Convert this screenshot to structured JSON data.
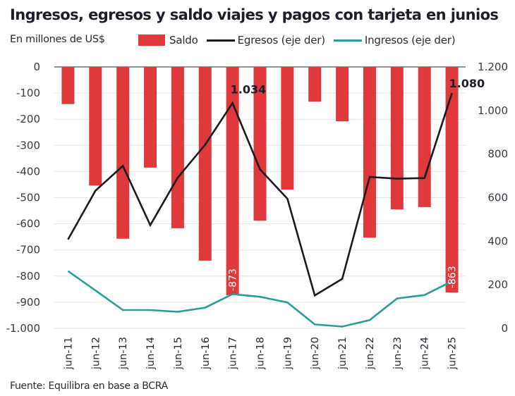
{
  "chart_data": {
    "type": "bar",
    "title": "Ingresos, egresos y saldo viajes y pagos con tarjeta en junios",
    "subtitle": "En millones de US$",
    "source": "Fuente: Equilibra en base a BCRA",
    "categories": [
      "jun-11",
      "jun-12",
      "jun-13",
      "jun-14",
      "jun-15",
      "jun-16",
      "jun-17",
      "jun-18",
      "jun-19",
      "jun-20",
      "jun-21",
      "jun-22",
      "jun-23",
      "jun-24",
      "jun-25"
    ],
    "series": [
      {
        "name": "Saldo",
        "type": "bar",
        "axis": "left",
        "color": "#e03939",
        "values": [
          -142,
          -454,
          -657,
          -385,
          -617,
          -741,
          -873,
          -588,
          -469,
          -133,
          -208,
          -653,
          -545,
          -536,
          -863
        ]
      },
      {
        "name": "Egresos (eje der)",
        "type": "line",
        "axis": "right",
        "color": "#1a1a22",
        "values": [
          408,
          632,
          746,
          474,
          692,
          843,
          1034,
          730,
          595,
          151,
          227,
          695,
          687,
          690,
          1080
        ]
      },
      {
        "name": "Ingresos (eje der)",
        "type": "line",
        "axis": "right",
        "color": "#2a9d95",
        "values": [
          263,
          174,
          84,
          84,
          76,
          95,
          157,
          145,
          119,
          18,
          8,
          38,
          137,
          153,
          216
        ]
      }
    ],
    "left_axis": {
      "range": [
        -1000,
        0
      ],
      "ticks": [
        0,
        -100,
        -200,
        -300,
        -400,
        -500,
        -600,
        -700,
        -800,
        -900,
        -1000
      ],
      "tick_labels": [
        "0",
        "-100",
        "-200",
        "-300",
        "-400",
        "-500",
        "-600",
        "-700",
        "-800",
        "-900",
        "-1.000"
      ]
    },
    "right_axis": {
      "range": [
        0,
        1200
      ],
      "ticks": [
        1200,
        1000,
        800,
        600,
        400,
        200,
        0
      ],
      "tick_labels": [
        "1.200",
        "1.000",
        "800",
        "600",
        "400",
        "200",
        "0"
      ]
    },
    "annotations": [
      {
        "series": "Egresos (eje der)",
        "category": "jun-17",
        "text": "1.034"
      },
      {
        "series": "Egresos (eje der)",
        "category": "jun-25",
        "text": "1.080"
      },
      {
        "series": "Saldo",
        "category": "jun-17",
        "text": "-873"
      },
      {
        "series": "Saldo",
        "category": "jun-25",
        "text": "-863"
      }
    ],
    "grid": true,
    "legend": "top"
  }
}
